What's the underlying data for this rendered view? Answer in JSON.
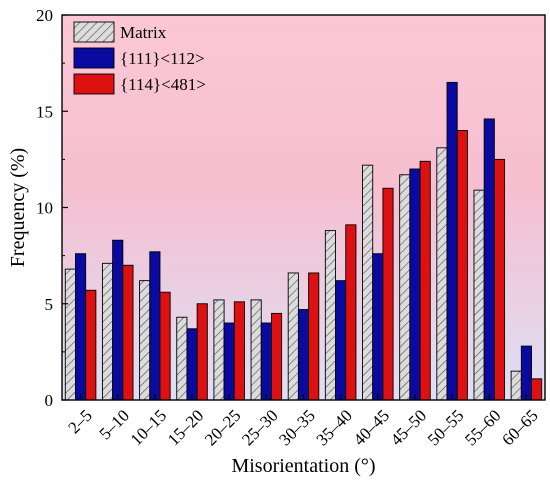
{
  "chart_data": {
    "type": "bar",
    "xlabel": "Misorientation (°)",
    "ylabel": "Frequency (%)",
    "ylim": [
      0,
      20
    ],
    "yticks": [
      0,
      5,
      10,
      15,
      20
    ],
    "grid": false,
    "legend_position": "top-left",
    "background": "vertical gradient pink (top) to light lavender (bottom)",
    "categories": [
      "2–5",
      "5–10",
      "10–15",
      "15–20",
      "20–25",
      "25–30",
      "30–35",
      "35–40",
      "40–45",
      "45–50",
      "50–55",
      "55–60",
      "60–65"
    ],
    "series": [
      {
        "name": "Matrix",
        "color": "#d9d9d9",
        "pattern": "diagonal-hatch",
        "values": [
          6.8,
          7.1,
          6.2,
          4.3,
          5.2,
          5.2,
          6.6,
          8.8,
          12.2,
          11.7,
          13.1,
          10.9,
          1.5
        ]
      },
      {
        "name": "{111}<112>",
        "color": "#0a0aa0",
        "values": [
          7.6,
          8.3,
          7.7,
          3.7,
          4.0,
          4.0,
          4.7,
          6.2,
          7.6,
          12.0,
          16.5,
          14.6,
          2.8
        ]
      },
      {
        "name": "{114}<481>",
        "color": "#dd1111",
        "values": [
          5.7,
          7.0,
          5.6,
          5.0,
          5.1,
          4.5,
          6.6,
          9.1,
          11.0,
          12.4,
          14.0,
          12.5,
          1.1
        ]
      }
    ]
  }
}
